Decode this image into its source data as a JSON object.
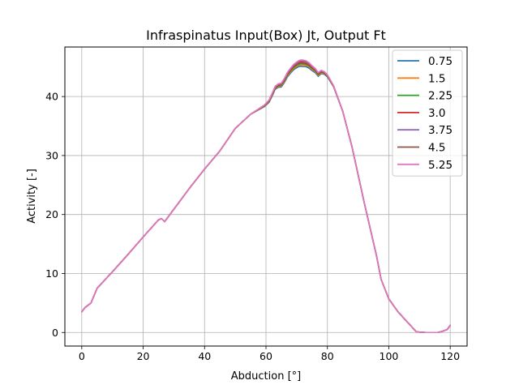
{
  "chart_data": {
    "type": "line",
    "title": "Infraspinatus Input(Box) Jt, Output Ft",
    "xlabel": "Abduction [°]",
    "ylabel": "Activity [-]",
    "xlim": [
      -5.5,
      125.5
    ],
    "ylim": [
      -2.3,
      48.4
    ],
    "xticks": [
      0,
      20,
      40,
      60,
      80,
      100,
      120
    ],
    "yticks": [
      0,
      10,
      20,
      30,
      40
    ],
    "grid": true,
    "legend_position": "top-right",
    "series": [
      {
        "name": "0.75",
        "color": "#1f77b4",
        "offset": -0.8
      },
      {
        "name": "1.5",
        "color": "#ff7f0e",
        "offset": -0.55
      },
      {
        "name": "2.25",
        "color": "#2ca02c",
        "offset": -0.35
      },
      {
        "name": "3.0",
        "color": "#d62728",
        "offset": -0.15
      },
      {
        "name": "3.75",
        "color": "#9467bd",
        "offset": 0.05
      },
      {
        "name": "4.5",
        "color": "#8c564b",
        "offset": 0.2
      },
      {
        "name": "5.25",
        "color": "#e377c2",
        "offset": 0.3
      }
    ],
    "base_curve": {
      "x": [
        0,
        1,
        3,
        5,
        10,
        15,
        20,
        25,
        26,
        27,
        30,
        35,
        40,
        45,
        50,
        55,
        58,
        59.5,
        61,
        62,
        63,
        64,
        65,
        66,
        67,
        68,
        69,
        70,
        71,
        72,
        73,
        74,
        75,
        76,
        77,
        78,
        79,
        80,
        82,
        85,
        88,
        92,
        96,
        97.5,
        100,
        103,
        106,
        109,
        112,
        114,
        116,
        117.5,
        119,
        120
      ],
      "y": [
        3.5,
        4.2,
        5.0,
        7.5,
        10.3,
        13.2,
        16.2,
        19.1,
        19.3,
        18.8,
        20.9,
        24.4,
        27.7,
        30.8,
        34.6,
        37.0,
        38.0,
        38.5,
        39.3,
        40.4,
        41.6,
        42.0,
        42.1,
        42.9,
        43.9,
        44.6,
        45.2,
        45.6,
        45.9,
        45.9,
        45.8,
        45.5,
        45.0,
        44.6,
        43.9,
        44.3,
        44.1,
        43.6,
        41.8,
        37.5,
        31.5,
        22.0,
        13.0,
        9.0,
        5.7,
        3.5,
        1.8,
        0.1,
        0.0,
        0.0,
        0.0,
        0.2,
        0.5,
        1.2
      ]
    }
  }
}
